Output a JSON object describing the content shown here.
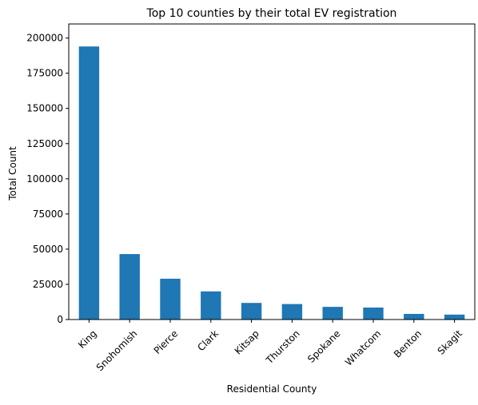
{
  "chart_data": {
    "type": "bar",
    "title": "Top 10 counties by their total EV registration",
    "xlabel": "Residential County",
    "ylabel": "Total Count",
    "categories": [
      "King",
      "Snohomish",
      "Pierce",
      "Clark",
      "Kitsap",
      "Thurston",
      "Spokane",
      "Whatcom",
      "Benton",
      "Skagit"
    ],
    "values": [
      194000,
      46500,
      29000,
      20000,
      11800,
      11000,
      9000,
      8500,
      4000,
      3500
    ],
    "ylim": [
      0,
      210000
    ],
    "yticks": [
      0,
      25000,
      50000,
      75000,
      100000,
      125000,
      150000,
      175000,
      200000
    ],
    "grid": false,
    "legend": "none",
    "bar_color": "#1f77b4"
  }
}
